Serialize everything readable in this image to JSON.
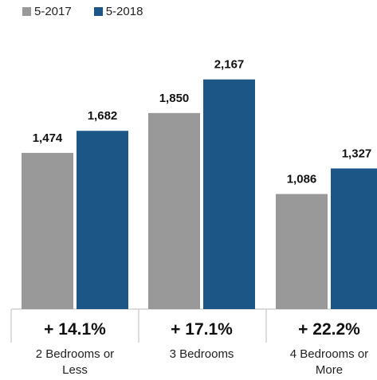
{
  "colors": {
    "s2017": "#999999",
    "s2018": "#1b5687",
    "axis": "#bbbbbb"
  },
  "legend": [
    {
      "name": "5-2017",
      "color": "#999999"
    },
    {
      "name": "5-2018",
      "color": "#1b5687"
    }
  ],
  "chart_data": {
    "type": "bar",
    "categories": [
      [
        "2 Bedrooms or",
        "Less"
      ],
      [
        "3 Bedrooms"
      ],
      [
        "4 Bedrooms or",
        "More"
      ]
    ],
    "series": [
      {
        "name": "5-2017",
        "values": [
          1474,
          1850,
          1086
        ],
        "labels": [
          "1,474",
          "1,850",
          "1,086"
        ]
      },
      {
        "name": "5-2018",
        "values": [
          1682,
          2167,
          1327
        ],
        "labels": [
          "1,682",
          "2,167",
          "1,327"
        ]
      }
    ],
    "changes": [
      "+ 14.1%",
      "+ 17.1%",
      "+ 22.2%"
    ],
    "title": "",
    "xlabel": "",
    "ylabel": "",
    "legend_position": "top-left",
    "grid": false
  }
}
